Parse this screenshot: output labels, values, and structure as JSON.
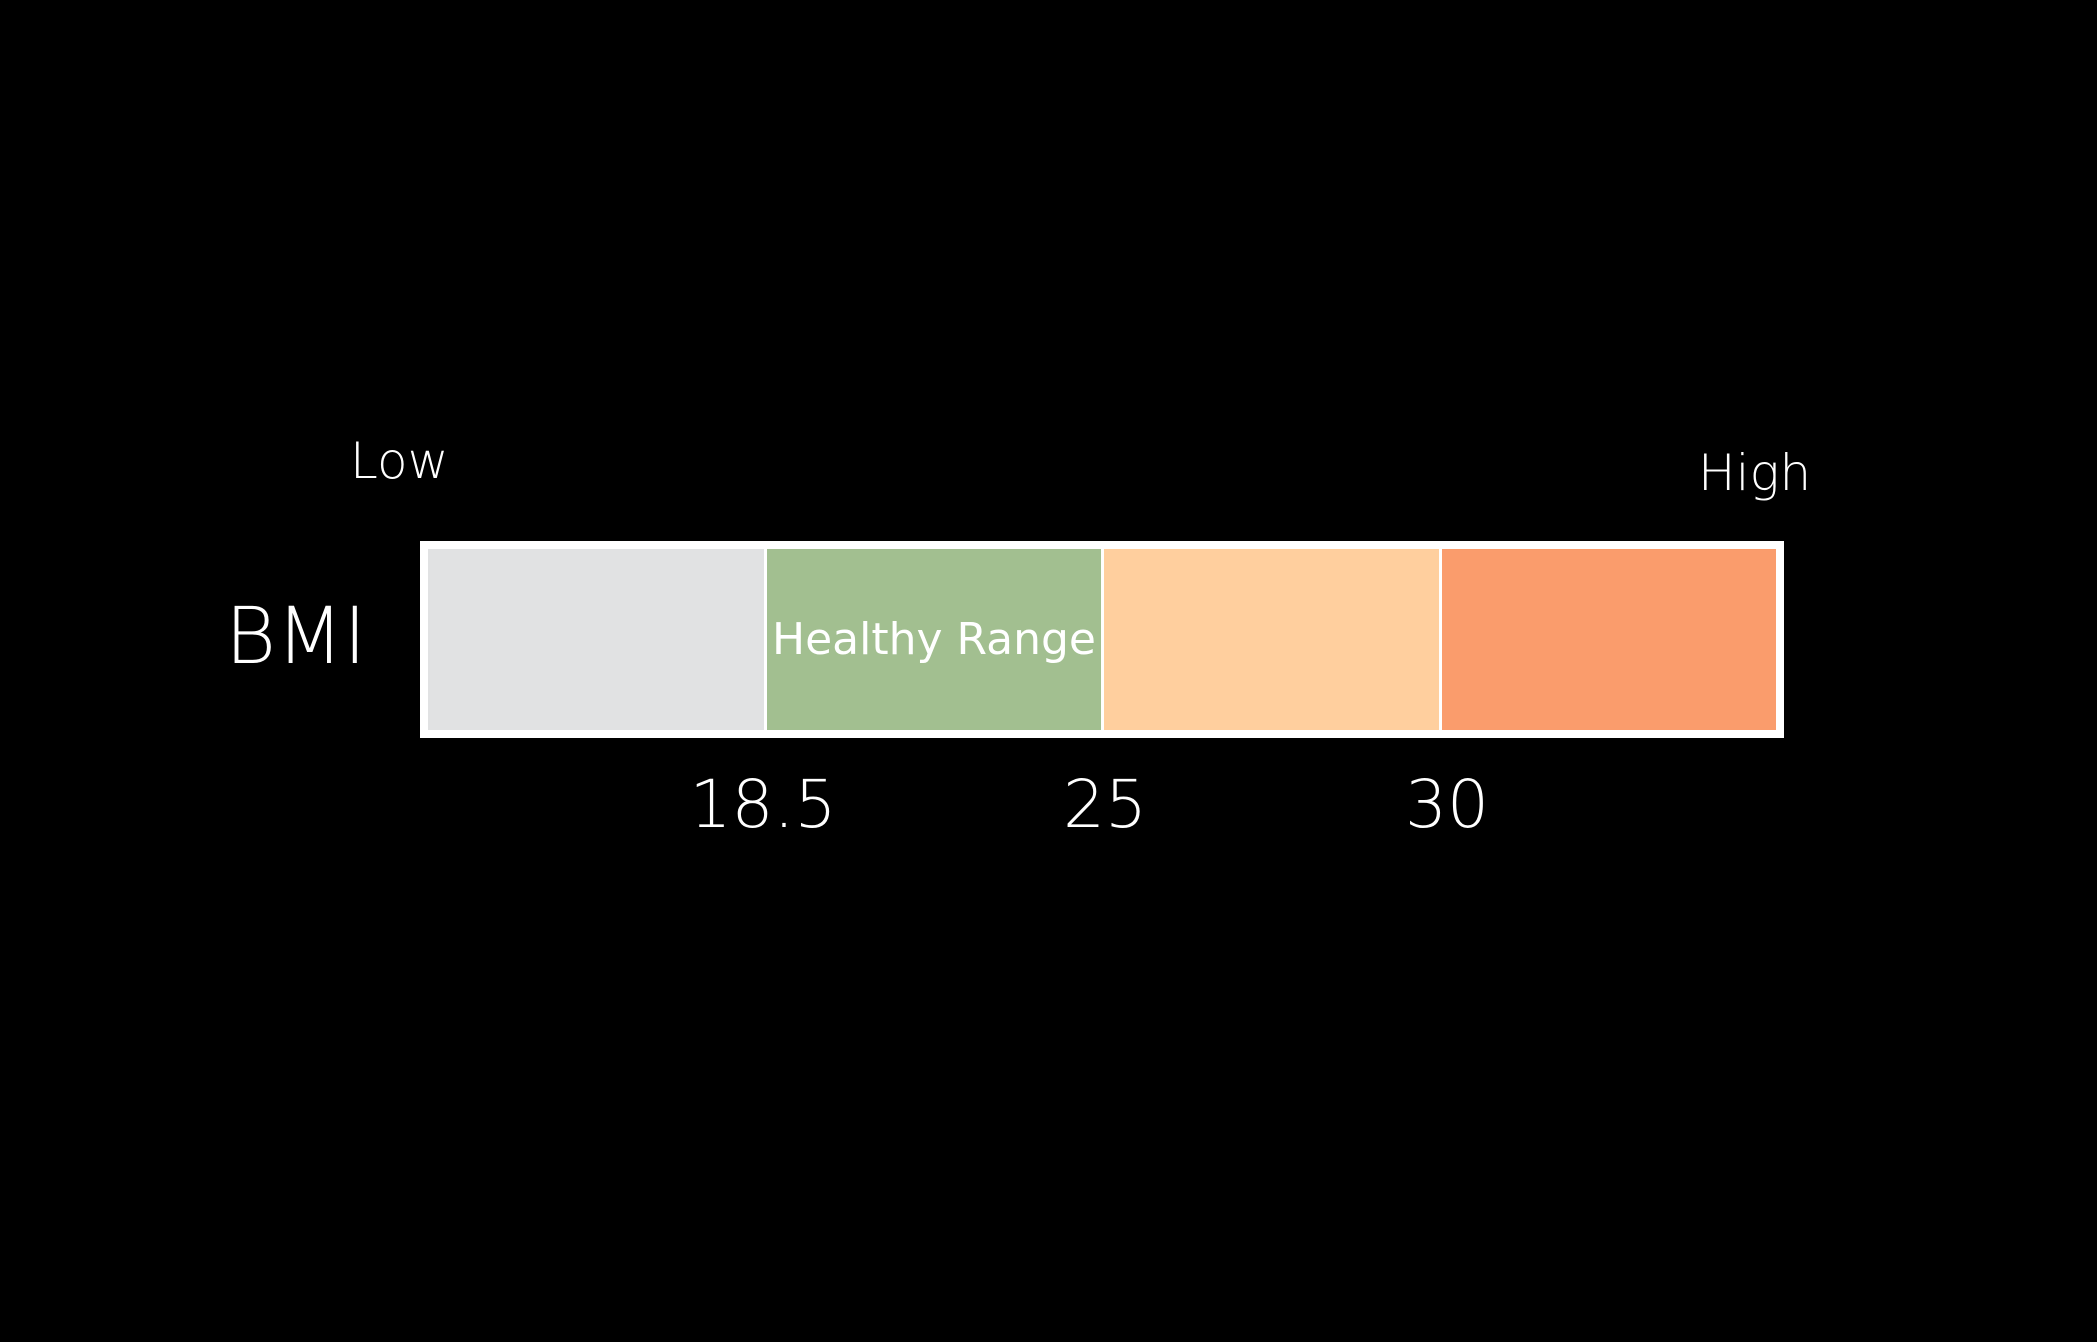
{
  "scale": {
    "end_labels": {
      "low": "Low",
      "high": "High"
    },
    "row_label": "BMI",
    "segments": [
      {
        "label": "",
        "color": "#e1e2e3"
      },
      {
        "label": "Healthy Range",
        "color": "#a2bf90"
      },
      {
        "label": "",
        "color": "#ffcf9e"
      },
      {
        "label": "",
        "color": "#fa9c6c"
      }
    ],
    "thresholds": [
      "18.5",
      "25",
      "30"
    ],
    "frame_color": "#ffffff",
    "background_color": "#000000"
  }
}
